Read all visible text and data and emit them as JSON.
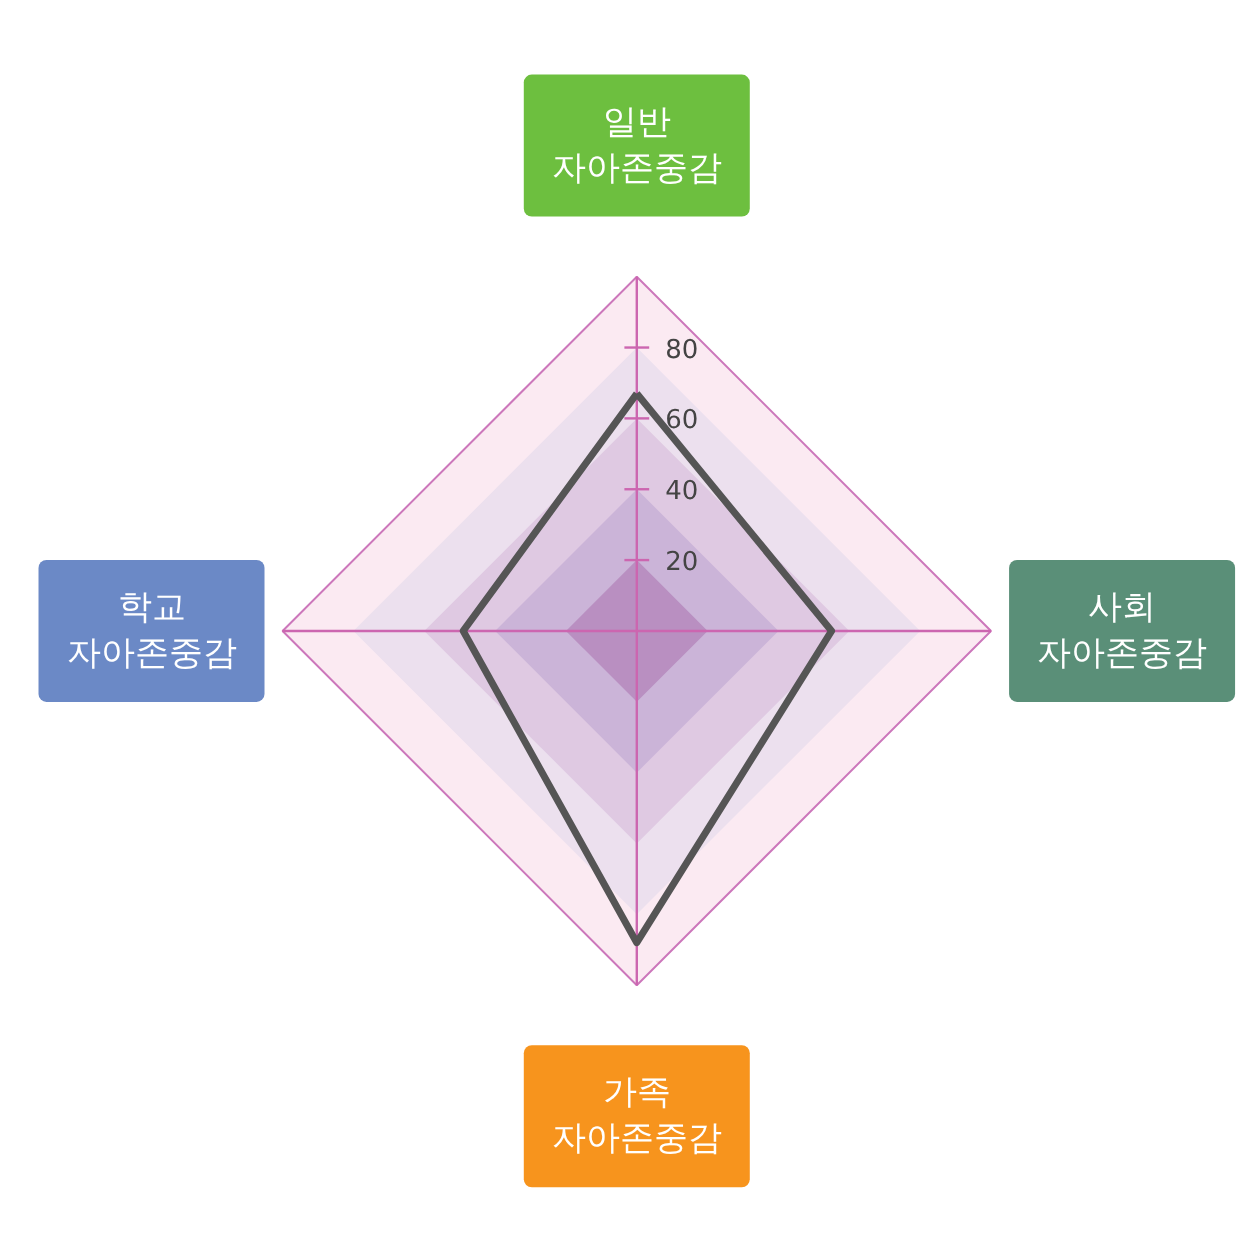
{
  "chart_data": {
    "type": "radar",
    "categories": [
      "일반\n자아존중감",
      "사회\n자아존중감",
      "가족\n자아존중감",
      "학교\n자아존중감"
    ],
    "series": [
      {
        "color": "#555555",
        "values": [
          67,
          55,
          88,
          49
        ]
      }
    ],
    "ylim": [
      0,
      100
    ],
    "yticks": [
      20,
      40,
      60,
      80
    ],
    "grid": true,
    "marker": "none",
    "line_style": "solid"
  }
}
